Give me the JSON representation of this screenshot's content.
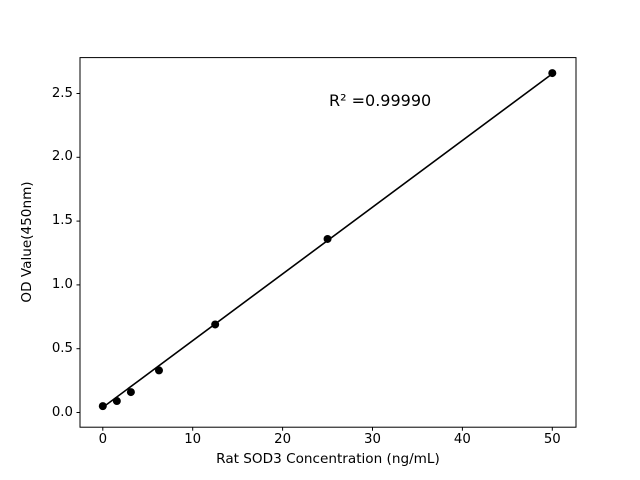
{
  "chart_data": {
    "type": "scatter",
    "title": "",
    "xlabel": "Rat SOD3 Concentration (ng/mL)",
    "ylabel": "OD Value(450nm)",
    "annotation": "R² =0.99990",
    "series": [
      {
        "name": "standard-curve-points",
        "x": [
          0,
          1.5625,
          3.125,
          6.25,
          12.5,
          25,
          50
        ],
        "y": [
          0.05,
          0.09,
          0.16,
          0.33,
          0.69,
          1.36,
          2.66
        ]
      }
    ],
    "fit_line": {
      "type": "linear",
      "slope": 0.0523,
      "intercept": 0.04,
      "x_start": 0,
      "x_end": 50,
      "r_squared": "0.99990"
    },
    "xticks": [
      0,
      10,
      20,
      30,
      40,
      50
    ],
    "xtick_labels": [
      "0",
      "10",
      "20",
      "30",
      "40",
      "50"
    ],
    "yticks": [
      0.0,
      0.5,
      1.0,
      1.5,
      2.0,
      2.5
    ],
    "ytick_labels": [
      "0.0",
      "0.5",
      "1.0",
      "1.5",
      "2.0",
      "2.5"
    ],
    "xlim": [
      -2.56,
      52.7
    ],
    "ylim": [
      -0.115,
      2.78
    ],
    "grid": false,
    "legend": false,
    "marker_color": "#000000",
    "line_color": "#000000",
    "spine_color": "#000000",
    "background_color": "#ffffff"
  }
}
